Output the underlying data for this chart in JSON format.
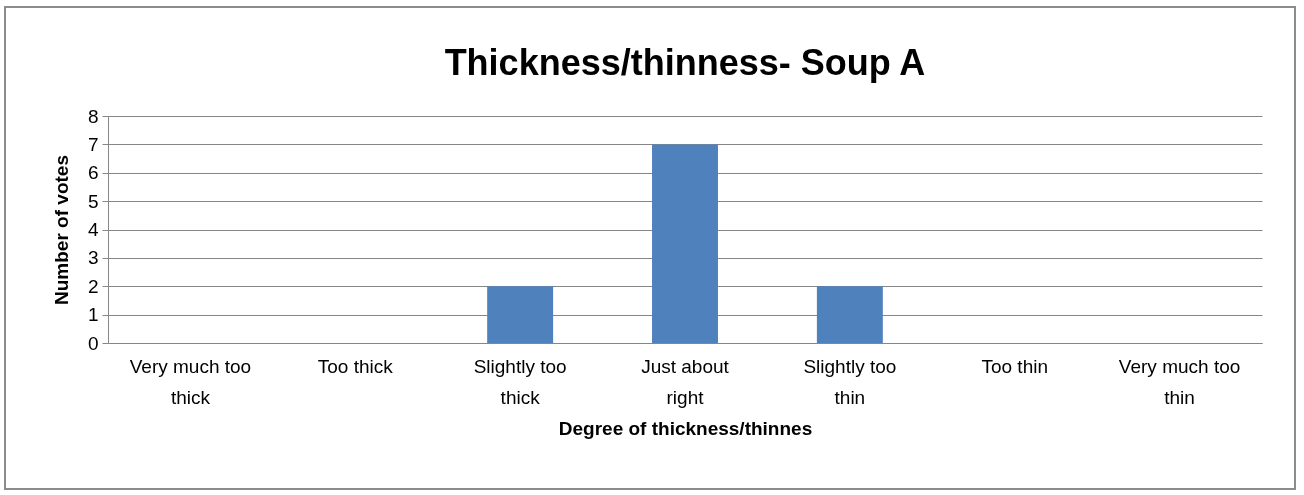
{
  "chart_data": {
    "type": "bar",
    "title": "Thickness/thinness- Soup A",
    "xlabel": "Degree of thickness/thinnes",
    "ylabel": "Number of votes",
    "categories": [
      "Very much too thick",
      "Too thick",
      "Slightly too thick",
      "Just about right",
      "Slightly too thin",
      "Too thin",
      "Very much too thin"
    ],
    "values": [
      0,
      0,
      2,
      7,
      2,
      0,
      0
    ],
    "color": "#4f81bd",
    "ylim": [
      0,
      8
    ],
    "yticks": [
      0,
      1,
      2,
      3,
      4,
      5,
      6,
      7,
      8
    ],
    "grid": "y"
  }
}
